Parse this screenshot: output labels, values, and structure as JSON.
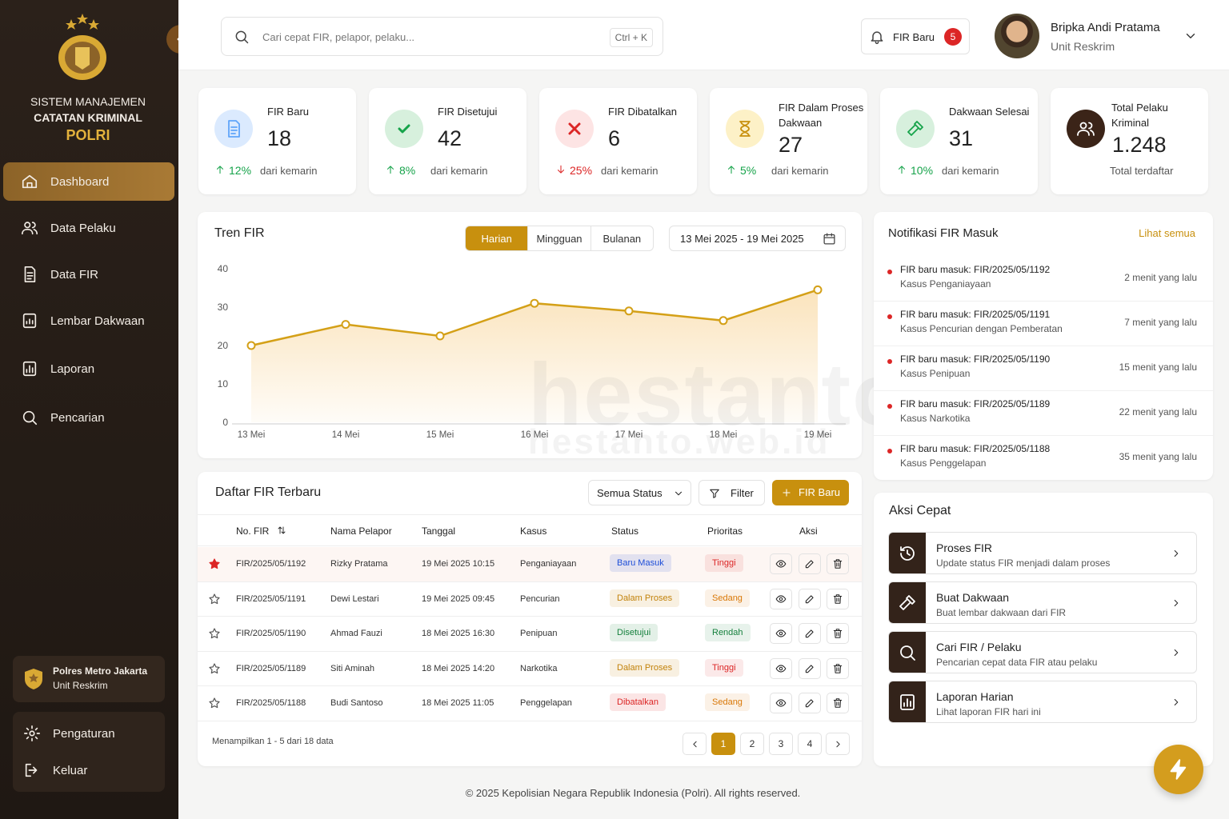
{
  "sidebar": {
    "title_lines": [
      "SISTEM MANAJEMEN",
      "CATATAN KRIMINAL",
      "POLRI"
    ],
    "menu": [
      "Dashboard",
      "Data Pelaku",
      "Data FIR",
      "Lembar Dakwaan",
      "Laporan",
      "Pencarian"
    ],
    "active_menu": 0,
    "unit": {
      "name": "Polres Metro Jakarta",
      "sub": "Unit Reskrim"
    },
    "bottom_menu": [
      "Pengaturan",
      "Keluar"
    ]
  },
  "header": {
    "search_placeholder": "Cari cepat FIR, pelapor, pelaku...",
    "shortcut": "Ctrl + K",
    "new_fir": "FIR Baru",
    "new_fir_count": 5,
    "user_name": "Bripka Andi Pratama",
    "user_role": "Unit Reskrim"
  },
  "stats": [
    {
      "label": "FIR Baru",
      "value": 18,
      "change": "12%",
      "trend": "up",
      "note": "dari kemarin"
    },
    {
      "label": "FIR Disetujui",
      "value": 42,
      "change": "8%",
      "trend": "up",
      "note": "dari kemarin"
    },
    {
      "label": "FIR Dibatalkan",
      "value": 6,
      "change": "25%",
      "trend": "down",
      "note": "dari kemarin"
    },
    {
      "label": "FIR Dalam Proses Dakwaan",
      "value": 27,
      "change": "5%",
      "trend": "up",
      "note": "dari kemarin"
    },
    {
      "label": "Dakwaan Selesai",
      "value": 31,
      "change": "10%",
      "trend": "up",
      "note": "dari kemarin"
    },
    {
      "label": "Total Pelaku Kriminal",
      "value": "1.248",
      "note": "Total terdaftar"
    }
  ],
  "chart_data": {
    "type": "line",
    "title": "Tren FIR",
    "categories": [
      "13 Mei",
      "14 Mei",
      "15 Mei",
      "16 Mei",
      "17 Mei",
      "18 Mei",
      "19 Mei"
    ],
    "values": [
      20,
      25.5,
      22.5,
      31,
      29,
      26.5,
      34.5
    ],
    "color": "#d4a017",
    "ylim": [
      0,
      40
    ],
    "yticks": [
      0,
      10,
      20,
      30,
      40
    ],
    "grid": false
  },
  "chart_controls": {
    "tabs": [
      "Harian",
      "Mingguan",
      "Bulanan"
    ],
    "active_tab": 0,
    "date_range": "13 Mei 2025 - 19 Mei 2025"
  },
  "notifications": {
    "title": "Notifikasi FIR Masuk",
    "link": "Lihat semua",
    "items": [
      {
        "title": "FIR baru masuk: FIR/2025/05/1192",
        "case": "Kasus Penganiayaan",
        "time": "2 menit yang lalu"
      },
      {
        "title": "FIR baru masuk: FIR/2025/05/1191",
        "case": "Kasus Pencurian dengan Pemberatan",
        "time": "7 menit yang lalu"
      },
      {
        "title": "FIR baru masuk: FIR/2025/05/1190",
        "case": "Kasus Penipuan",
        "time": "15 menit yang lalu"
      },
      {
        "title": "FIR baru masuk: FIR/2025/05/1189",
        "case": "Kasus Narkotika",
        "time": "22 menit yang lalu"
      },
      {
        "title": "FIR baru masuk: FIR/2025/05/1188",
        "case": "Kasus Penggelapan",
        "time": "35 menit yang lalu"
      }
    ]
  },
  "table": {
    "title": "Daftar FIR Terbaru",
    "status_filter": "Semua Status",
    "filter": "Filter",
    "new_button": "FIR Baru",
    "columns": [
      "No. FIR",
      "Nama Pelapor",
      "Tanggal",
      "Kasus",
      "Status",
      "Prioritas",
      "Aksi"
    ],
    "rows": [
      {
        "starred": true,
        "no": "FIR/2025/05/1192",
        "reporter": "Rizky Pratama",
        "date": "19 Mei 2025 10:15",
        "case": "Penganiayaan",
        "status": "Baru Masuk",
        "status_color": "#1d4ed8",
        "priority": "Tinggi",
        "priority_color": "#dc2626"
      },
      {
        "starred": false,
        "no": "FIR/2025/05/1191",
        "reporter": "Dewi Lestari",
        "date": "19 Mei 2025 09:45",
        "case": "Pencurian",
        "status": "Dalam Proses",
        "status_color": "#c2820a",
        "priority": "Sedang",
        "priority_color": "#d97706"
      },
      {
        "starred": false,
        "no": "FIR/2025/05/1190",
        "reporter": "Ahmad Fauzi",
        "date": "18 Mei 2025 16:30",
        "case": "Penipuan",
        "status": "Disetujui",
        "status_color": "#15803d",
        "priority": "Rendah",
        "priority_color": "#15803d"
      },
      {
        "starred": false,
        "no": "FIR/2025/05/1189",
        "reporter": "Siti Aminah",
        "date": "18 Mei 2025 14:20",
        "case": "Narkotika",
        "status": "Dalam Proses",
        "status_color": "#c2820a",
        "priority": "Tinggi",
        "priority_color": "#dc2626"
      },
      {
        "starred": false,
        "no": "FIR/2025/05/1188",
        "reporter": "Budi Santoso",
        "date": "18 Mei 2025 11:05",
        "case": "Penggelapan",
        "status": "Dibatalkan",
        "status_color": "#dc2626",
        "priority": "Sedang",
        "priority_color": "#d97706"
      }
    ],
    "summary": "Menampilkan 1 - 5 dari 18 data",
    "pages": [
      1,
      2,
      3,
      4
    ],
    "active_page": 0
  },
  "quick_actions": {
    "title": "Aksi Cepat",
    "items": [
      {
        "title": "Proses FIR",
        "desc": "Update status FIR menjadi dalam proses"
      },
      {
        "title": "Buat Dakwaan",
        "desc": "Buat lembar dakwaan dari FIR"
      },
      {
        "title": "Cari FIR / Pelaku",
        "desc": "Pencarian cepat data FIR atau pelaku"
      },
      {
        "title": "Laporan Harian",
        "desc": "Lihat laporan FIR hari ini"
      }
    ]
  },
  "watermark": [
    "hestanto",
    "hestanto.web.id"
  ],
  "footer": "© 2025 Kepolisian Negara Republik Indonesia (Polri). All rights reserved."
}
